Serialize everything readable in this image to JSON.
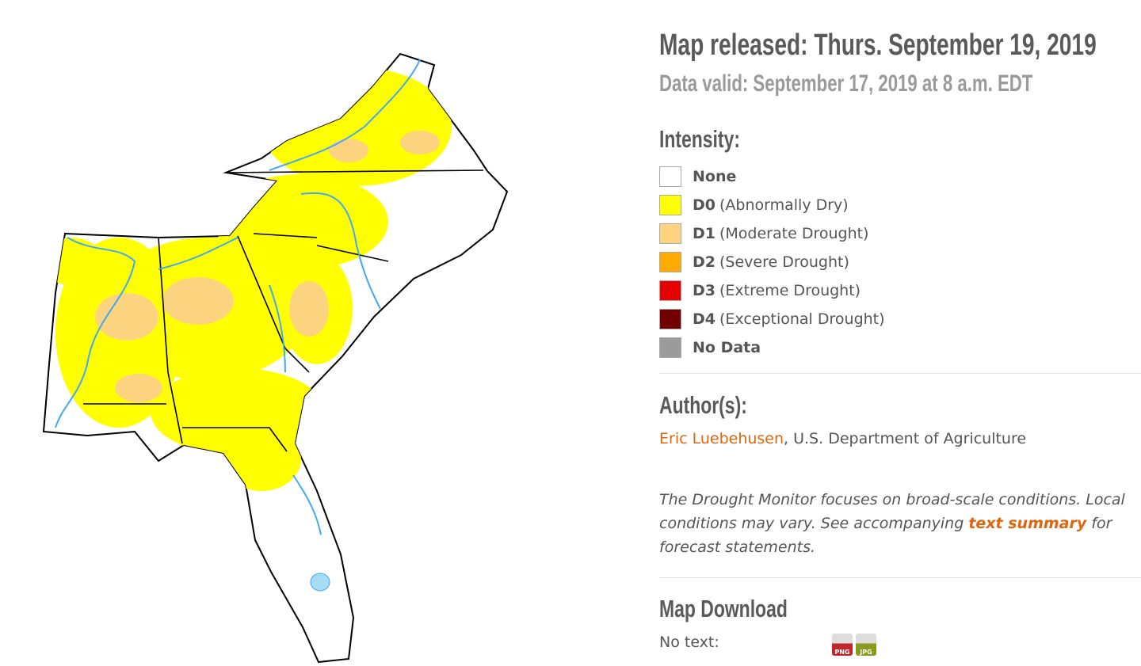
{
  "header": {
    "title": "Map released: Thurs. September 19, 2019",
    "subtitle": "Data valid: September 17, 2019 at 8 a.m. EDT"
  },
  "intensity": {
    "heading": "Intensity:",
    "items": [
      {
        "code": "None",
        "color": "#ffffff"
      },
      {
        "code": "D0",
        "label": "(Abnormally Dry)",
        "color": "#ffff00"
      },
      {
        "code": "D1",
        "label": "(Moderate Drought)",
        "color": "#fcd37f"
      },
      {
        "code": "D2",
        "label": "(Severe Drought)",
        "color": "#ffaa00"
      },
      {
        "code": "D3",
        "label": "(Extreme Drought)",
        "color": "#e60000"
      },
      {
        "code": "D4",
        "label": "(Exceptional Drought)",
        "color": "#730000"
      },
      {
        "code": "No Data",
        "color": "#9b9b9b"
      }
    ]
  },
  "authors": {
    "heading": "Author(s):",
    "name": "Eric Luebehusen",
    "org": ", U.S. Department of Agriculture"
  },
  "note": {
    "before": "The Drought Monitor focuses on broad-scale conditions. Local conditions may vary. See accompanying ",
    "link": "text summary",
    "after": " for forecast statements."
  },
  "download": {
    "heading": "Map Download",
    "label": "No text:",
    "icons": [
      "PNG",
      "JPG"
    ]
  }
}
